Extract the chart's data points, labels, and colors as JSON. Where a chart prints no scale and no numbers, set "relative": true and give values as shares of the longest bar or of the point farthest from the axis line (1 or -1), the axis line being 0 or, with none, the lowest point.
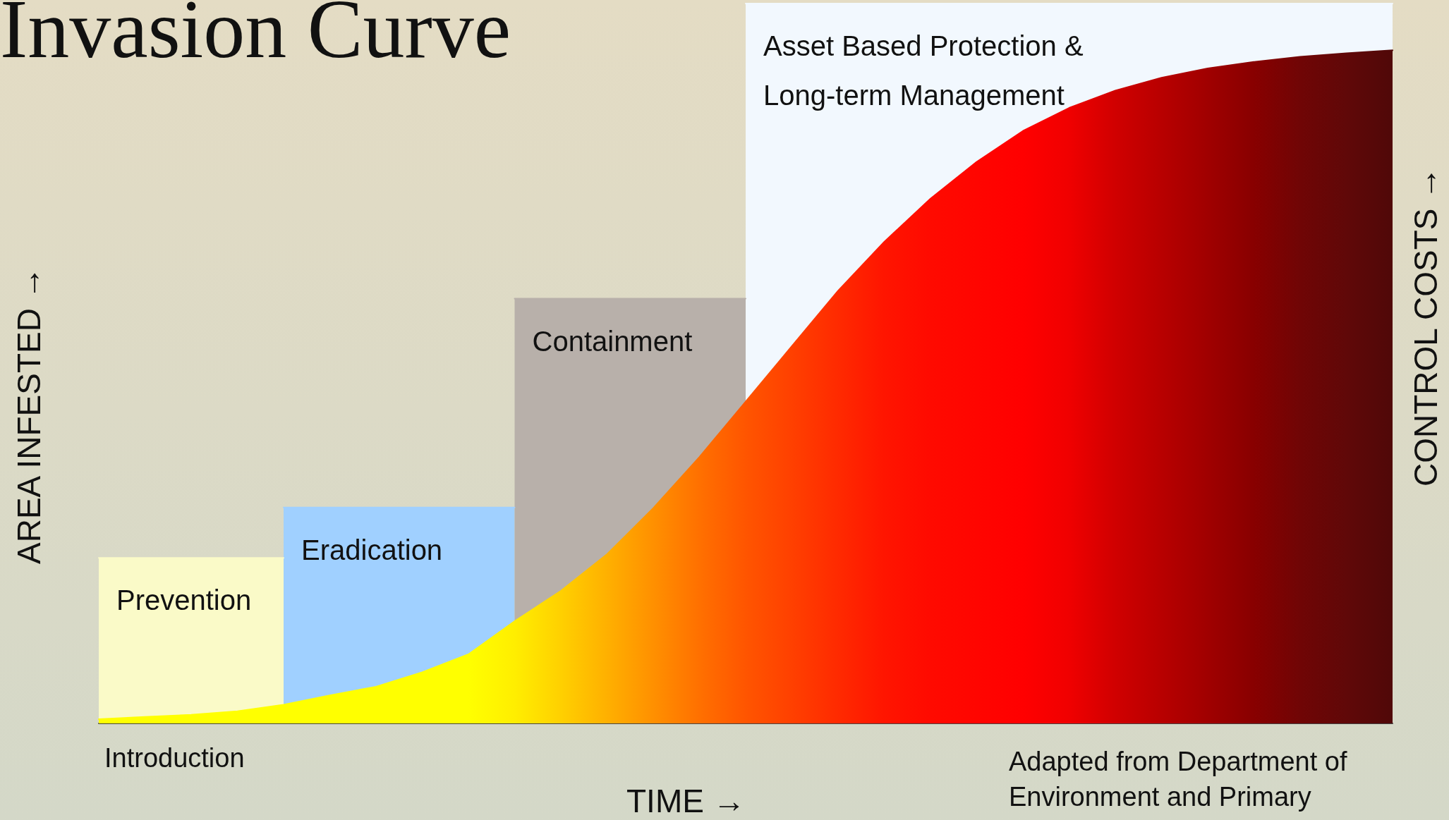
{
  "chart_data": {
    "type": "area",
    "title": "Invasion Curve",
    "ylabel": "AREA INFESTED →",
    "y2label": "CONTROL COSTS →",
    "xlabel": "TIME →",
    "relative": true,
    "grid": false,
    "legend": false,
    "annotations": [
      "Introduction",
      "Adapted from Department of Environment and Primary"
    ],
    "categories": [
      null,
      null,
      null,
      null,
      null,
      null,
      null,
      null,
      null,
      null,
      null,
      null,
      null,
      null,
      null,
      null,
      null,
      null,
      null,
      null,
      null,
      null,
      null,
      null,
      null,
      null,
      null,
      null,
      null
    ],
    "series": [
      {
        "name": "Prevention",
        "color": "#fafac8",
        "values": [
          0.23,
          0.23,
          0.23,
          0.23,
          0.23,
          null,
          null,
          null,
          null,
          null,
          null,
          null,
          null,
          null,
          null,
          null,
          null,
          null,
          null,
          null,
          null,
          null,
          null,
          null,
          null,
          null,
          null,
          null,
          null
        ]
      },
      {
        "name": "Eradication",
        "color": "#a0d0ff",
        "values": [
          null,
          null,
          null,
          null,
          0.3,
          0.3,
          0.3,
          0.3,
          0.3,
          0.3,
          null,
          null,
          null,
          null,
          null,
          null,
          null,
          null,
          null,
          null,
          null,
          null,
          null,
          null,
          null,
          null,
          null,
          null,
          null
        ]
      },
      {
        "name": "Containment",
        "color": "#b8b0aa",
        "values": [
          null,
          null,
          null,
          null,
          null,
          null,
          null,
          null,
          null,
          0.59,
          0.59,
          0.59,
          0.59,
          0.59,
          0.59,
          null,
          null,
          null,
          null,
          null,
          null,
          null,
          null,
          null,
          null,
          null,
          null,
          null,
          null
        ]
      },
      {
        "name": "Asset Based Protection & Long-term Management",
        "color": "#f2f8fe",
        "values": [
          null,
          null,
          null,
          null,
          null,
          null,
          null,
          null,
          null,
          null,
          null,
          null,
          null,
          null,
          1,
          1,
          1,
          1,
          1,
          1,
          1,
          1,
          1,
          1,
          1,
          1,
          1,
          1,
          1
        ]
      },
      {
        "values": [
          0.006,
          0.009,
          0.012,
          0.017,
          0.026,
          0.039,
          0.051,
          0.071,
          0.096,
          0.142,
          0.184,
          0.235,
          0.299,
          0.37,
          0.447,
          0.524,
          0.601,
          0.669,
          0.729,
          0.78,
          0.823,
          0.855,
          0.879,
          0.897,
          0.91,
          0.919,
          0.926,
          0.931,
          0.935
        ],
        "colors": [
          "#ffff00",
          "#ffff00",
          "#ffff00",
          "#ffff00",
          "#ffff00",
          "#ffff00",
          "#ffff00",
          "#ffff00",
          "#ffff00",
          "#ffee00",
          "#ffd000",
          "#ffb000",
          "#ff9000",
          "#ff7000",
          "#ff5500",
          "#ff4000",
          "#ff2a00",
          "#ff1500",
          "#ff0a00",
          "#ff0500",
          "#ff0000",
          "#f00000",
          "#d00000",
          "#b80000",
          "#a00000",
          "#880000",
          "#700505",
          "#600808",
          "#500808"
        ]
      }
    ]
  }
}
